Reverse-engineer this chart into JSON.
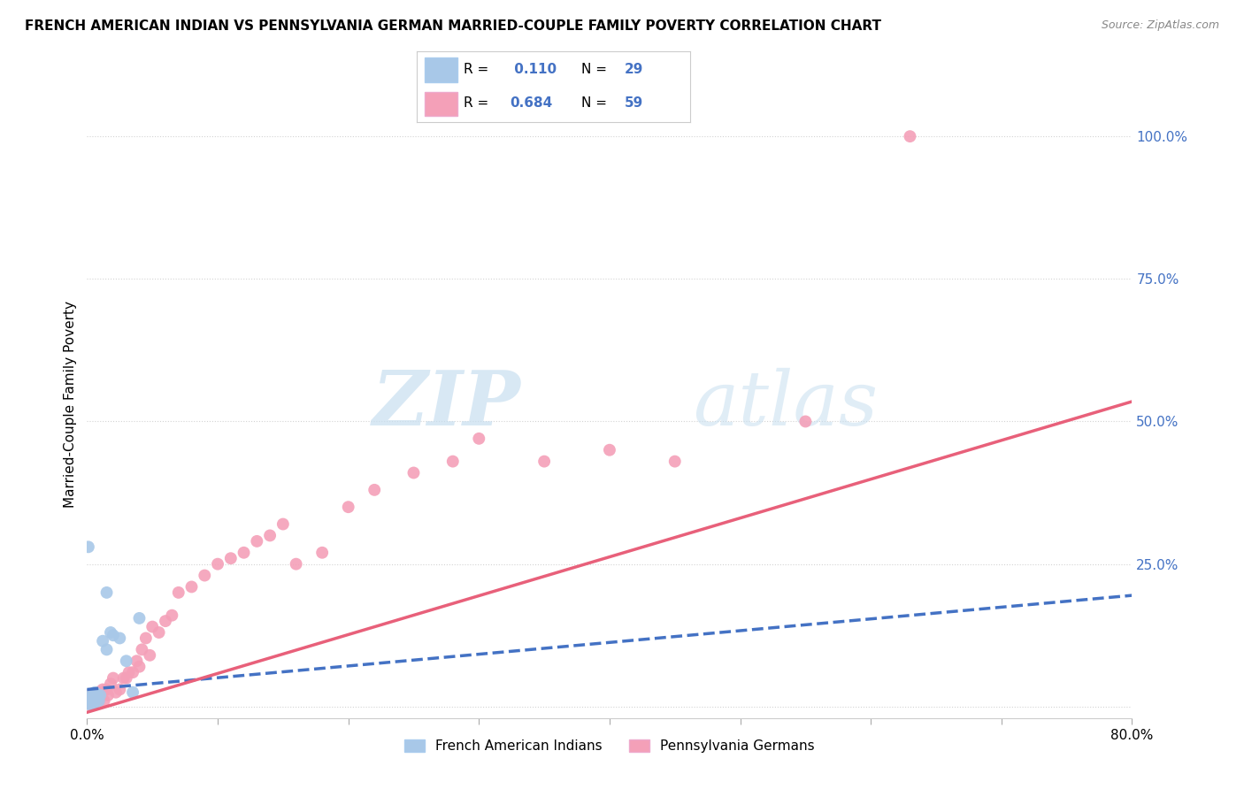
{
  "title": "FRENCH AMERICAN INDIAN VS PENNSYLVANIA GERMAN MARRIED-COUPLE FAMILY POVERTY CORRELATION CHART",
  "source": "Source: ZipAtlas.com",
  "ylabel": "Married-Couple Family Poverty",
  "xlim": [
    0.0,
    0.8
  ],
  "ylim": [
    -0.02,
    1.08
  ],
  "yticks": [
    0.0,
    0.25,
    0.5,
    0.75,
    1.0
  ],
  "ytick_labels": [
    "",
    "25.0%",
    "50.0%",
    "75.0%",
    "100.0%"
  ],
  "legend_label1": "French American Indians",
  "legend_label2": "Pennsylvania Germans",
  "r1": 0.11,
  "n1": 29,
  "r2": 0.684,
  "n2": 59,
  "blue_color": "#a8c8e8",
  "blue_line_color": "#4472c4",
  "pink_color": "#f4a0b8",
  "pink_line_color": "#e8607a",
  "watermark_zip": "ZIP",
  "watermark_atlas": "atlas",
  "blue_line_x": [
    0.0,
    0.8
  ],
  "blue_line_y": [
    0.03,
    0.195
  ],
  "pink_line_x": [
    0.0,
    0.8
  ],
  "pink_line_y": [
    -0.01,
    0.535
  ],
  "blue_scatter_x": [
    0.001,
    0.001,
    0.001,
    0.001,
    0.001,
    0.002,
    0.002,
    0.002,
    0.003,
    0.003,
    0.004,
    0.004,
    0.005,
    0.005,
    0.006,
    0.006,
    0.008,
    0.009,
    0.01,
    0.012,
    0.015,
    0.015,
    0.018,
    0.02,
    0.025,
    0.03,
    0.035,
    0.04,
    0.001
  ],
  "blue_scatter_y": [
    0.005,
    0.01,
    0.015,
    0.02,
    0.005,
    0.01,
    0.015,
    0.005,
    0.01,
    0.005,
    0.01,
    0.015,
    0.02,
    0.005,
    0.025,
    0.01,
    0.02,
    0.01,
    0.02,
    0.115,
    0.1,
    0.2,
    0.13,
    0.125,
    0.12,
    0.08,
    0.025,
    0.155,
    0.28
  ],
  "pink_scatter_x": [
    0.001,
    0.001,
    0.001,
    0.002,
    0.002,
    0.003,
    0.003,
    0.004,
    0.005,
    0.005,
    0.006,
    0.007,
    0.008,
    0.009,
    0.01,
    0.01,
    0.011,
    0.012,
    0.013,
    0.015,
    0.016,
    0.018,
    0.02,
    0.022,
    0.025,
    0.028,
    0.03,
    0.032,
    0.035,
    0.038,
    0.04,
    0.042,
    0.045,
    0.048,
    0.05,
    0.055,
    0.06,
    0.065,
    0.07,
    0.08,
    0.09,
    0.1,
    0.11,
    0.12,
    0.13,
    0.14,
    0.15,
    0.16,
    0.18,
    0.2,
    0.22,
    0.25,
    0.28,
    0.3,
    0.35,
    0.4,
    0.45,
    0.55,
    0.63
  ],
  "pink_scatter_y": [
    0.005,
    0.01,
    0.02,
    0.005,
    0.015,
    0.008,
    0.02,
    0.01,
    0.015,
    0.005,
    0.015,
    0.02,
    0.025,
    0.01,
    0.015,
    0.025,
    0.02,
    0.03,
    0.01,
    0.03,
    0.02,
    0.04,
    0.05,
    0.025,
    0.03,
    0.05,
    0.05,
    0.06,
    0.06,
    0.08,
    0.07,
    0.1,
    0.12,
    0.09,
    0.14,
    0.13,
    0.15,
    0.16,
    0.2,
    0.21,
    0.23,
    0.25,
    0.26,
    0.27,
    0.29,
    0.3,
    0.32,
    0.25,
    0.27,
    0.35,
    0.38,
    0.41,
    0.43,
    0.47,
    0.43,
    0.45,
    0.43,
    0.5,
    1.0
  ]
}
